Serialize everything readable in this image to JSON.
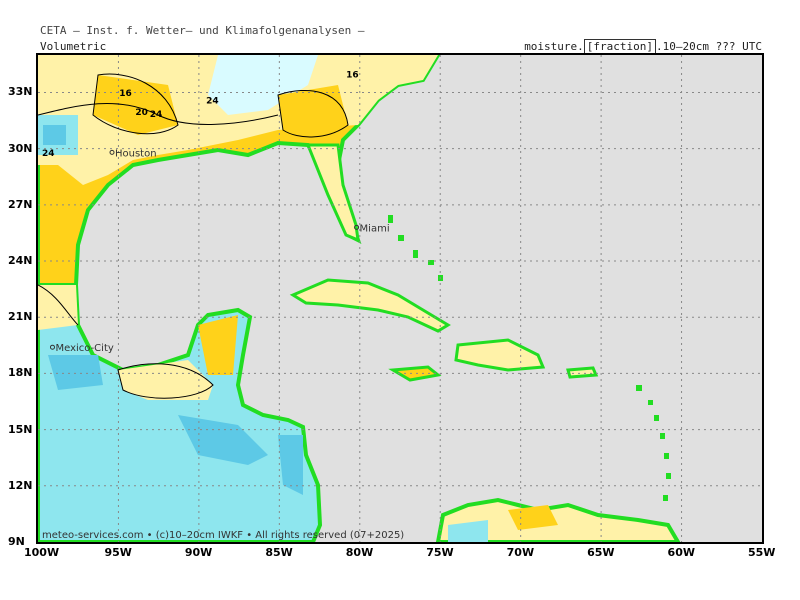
{
  "header": {
    "title": "CETA – Inst. f. Wetter– und Klimafolgenanalysen –",
    "left": "Volumetric",
    "right_prefix": "moisture.",
    "right_boxed": "[fraction]",
    "right_suffix": ".10–20cm ??? UTC"
  },
  "map": {
    "lon_range": [
      -100,
      -55
    ],
    "lat_range": [
      9,
      35
    ],
    "lon_labels": [
      "100W",
      "95W",
      "90W",
      "85W",
      "80W",
      "75W",
      "70W",
      "65W",
      "60W",
      "55W"
    ],
    "lat_labels": [
      "33N",
      "30N",
      "27N",
      "24N",
      "21N",
      "18N",
      "15N",
      "12N",
      "9N"
    ],
    "cities": [
      {
        "name": "Houston",
        "lon": -95.4,
        "lat": 29.8
      },
      {
        "name": "Miami",
        "lon": -80.2,
        "lat": 25.8
      },
      {
        "name": "Mexico-City",
        "lon": -99.1,
        "lat": 19.4
      }
    ],
    "contour_labels": [
      "16",
      "20",
      "24",
      "24",
      "16",
      "24"
    ],
    "colors": {
      "ocean": "#e0e0e0",
      "dry": "#ffd21a",
      "medium": "#fff2a8",
      "moist": "#d9fbff",
      "wet": "#8ee6ee",
      "verywet": "#5dc9e6",
      "coast": "#22dd22"
    }
  },
  "footer": "meteo-services.com • (c)10–20cm IWKF • All rights reserved (07+2025)"
}
